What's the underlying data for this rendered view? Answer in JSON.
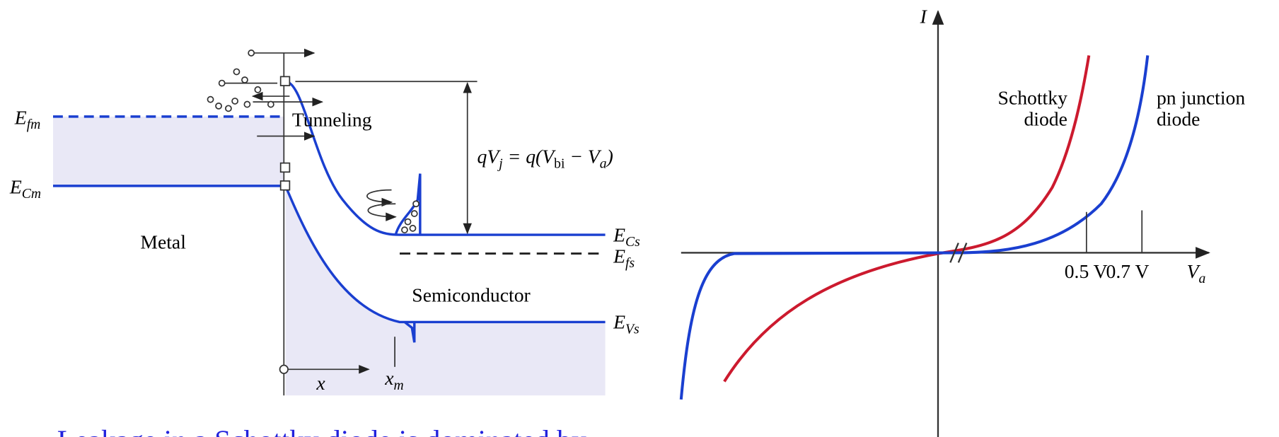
{
  "band_diagram": {
    "efm": {
      "main": "E",
      "sub": "fm"
    },
    "ecm": {
      "main": "E",
      "sub": "Cm"
    },
    "metal": "Metal",
    "tunneling": "Tunneling",
    "junction_voltage": {
      "main": [
        "qV",
        " = q(V",
        " − V",
        ")"
      ],
      "sub": [
        "j",
        "bi",
        "a"
      ]
    },
    "ecs": {
      "main": "E",
      "sub": "Cs"
    },
    "efs": {
      "main": "E",
      "sub": "fs"
    },
    "semiconductor": "Semiconductor",
    "evs": {
      "main": "E",
      "sub": "Vs"
    },
    "x": "x",
    "xm": {
      "main": "x",
      "sub": "m"
    }
  },
  "iv_curve": {
    "y_label": "I",
    "schottky": [
      "Schottky",
      "diode"
    ],
    "pn": [
      "pn junction",
      "diode"
    ],
    "tick_05": "0.5 V",
    "tick_07": "0.7 V",
    "x_label": {
      "main": "V",
      "sub": "a"
    }
  },
  "caption": "Leakage in a Schottky diode is dominated by"
}
